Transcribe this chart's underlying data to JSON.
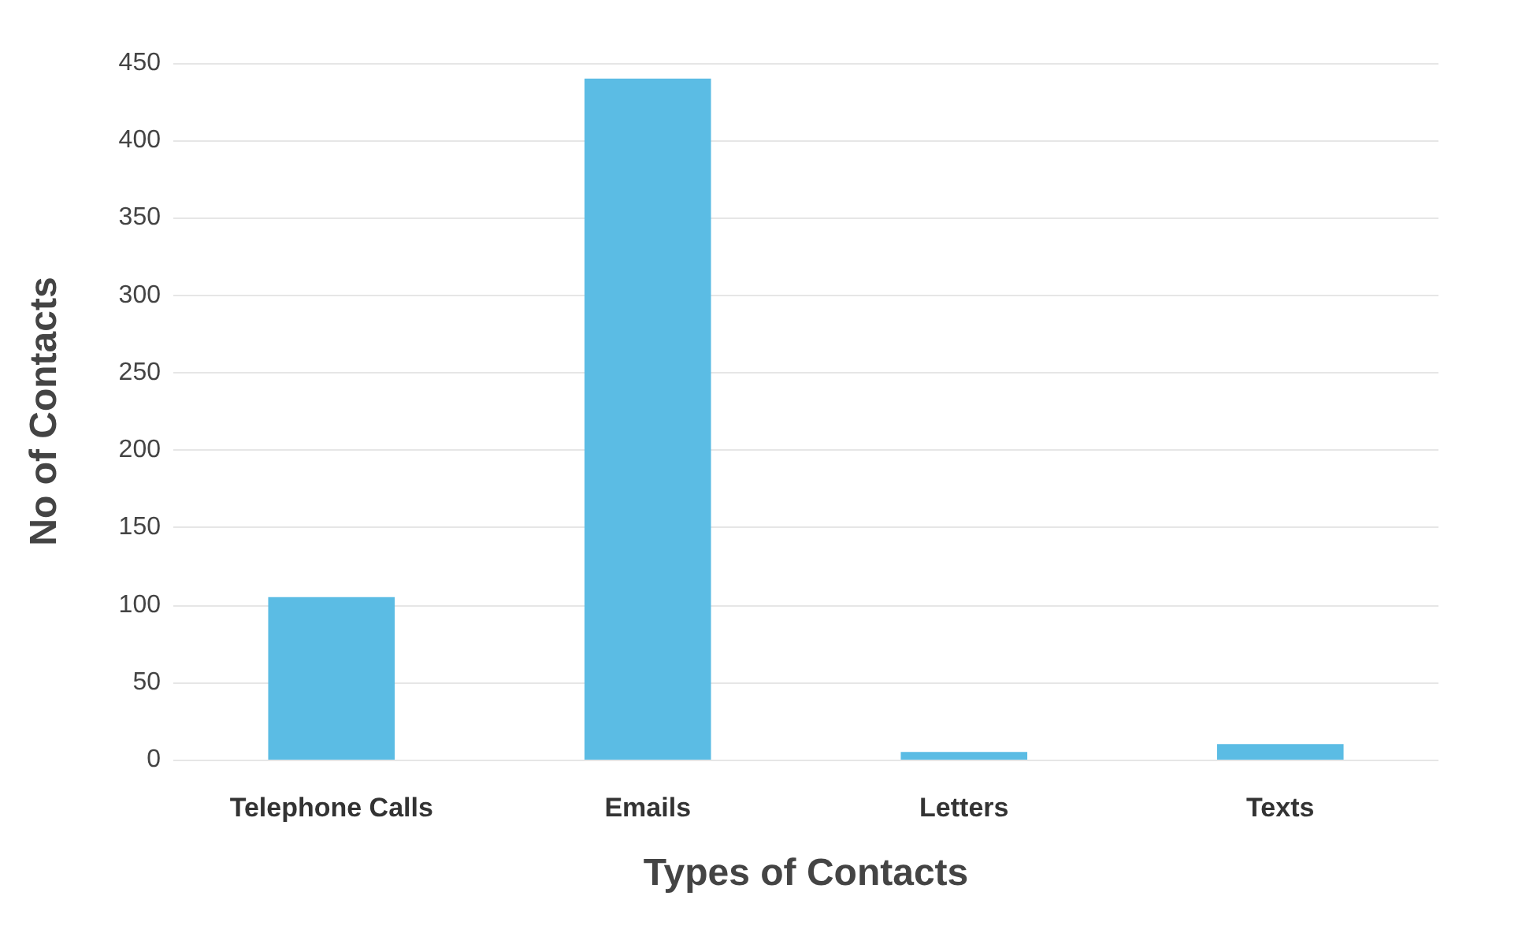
{
  "chart_data": {
    "type": "bar",
    "xlabel": "Types of Contacts",
    "ylabel": "No of Contacts",
    "categories": [
      "Telephone Calls",
      "Emails",
      "Letters",
      "Texts"
    ],
    "values": [
      105,
      440,
      5,
      10
    ],
    "color": "#5bbce4",
    "ylim": [
      0,
      450
    ],
    "yticks": [
      0,
      50,
      100,
      150,
      200,
      250,
      300,
      350,
      400,
      450
    ],
    "grid": true
  }
}
